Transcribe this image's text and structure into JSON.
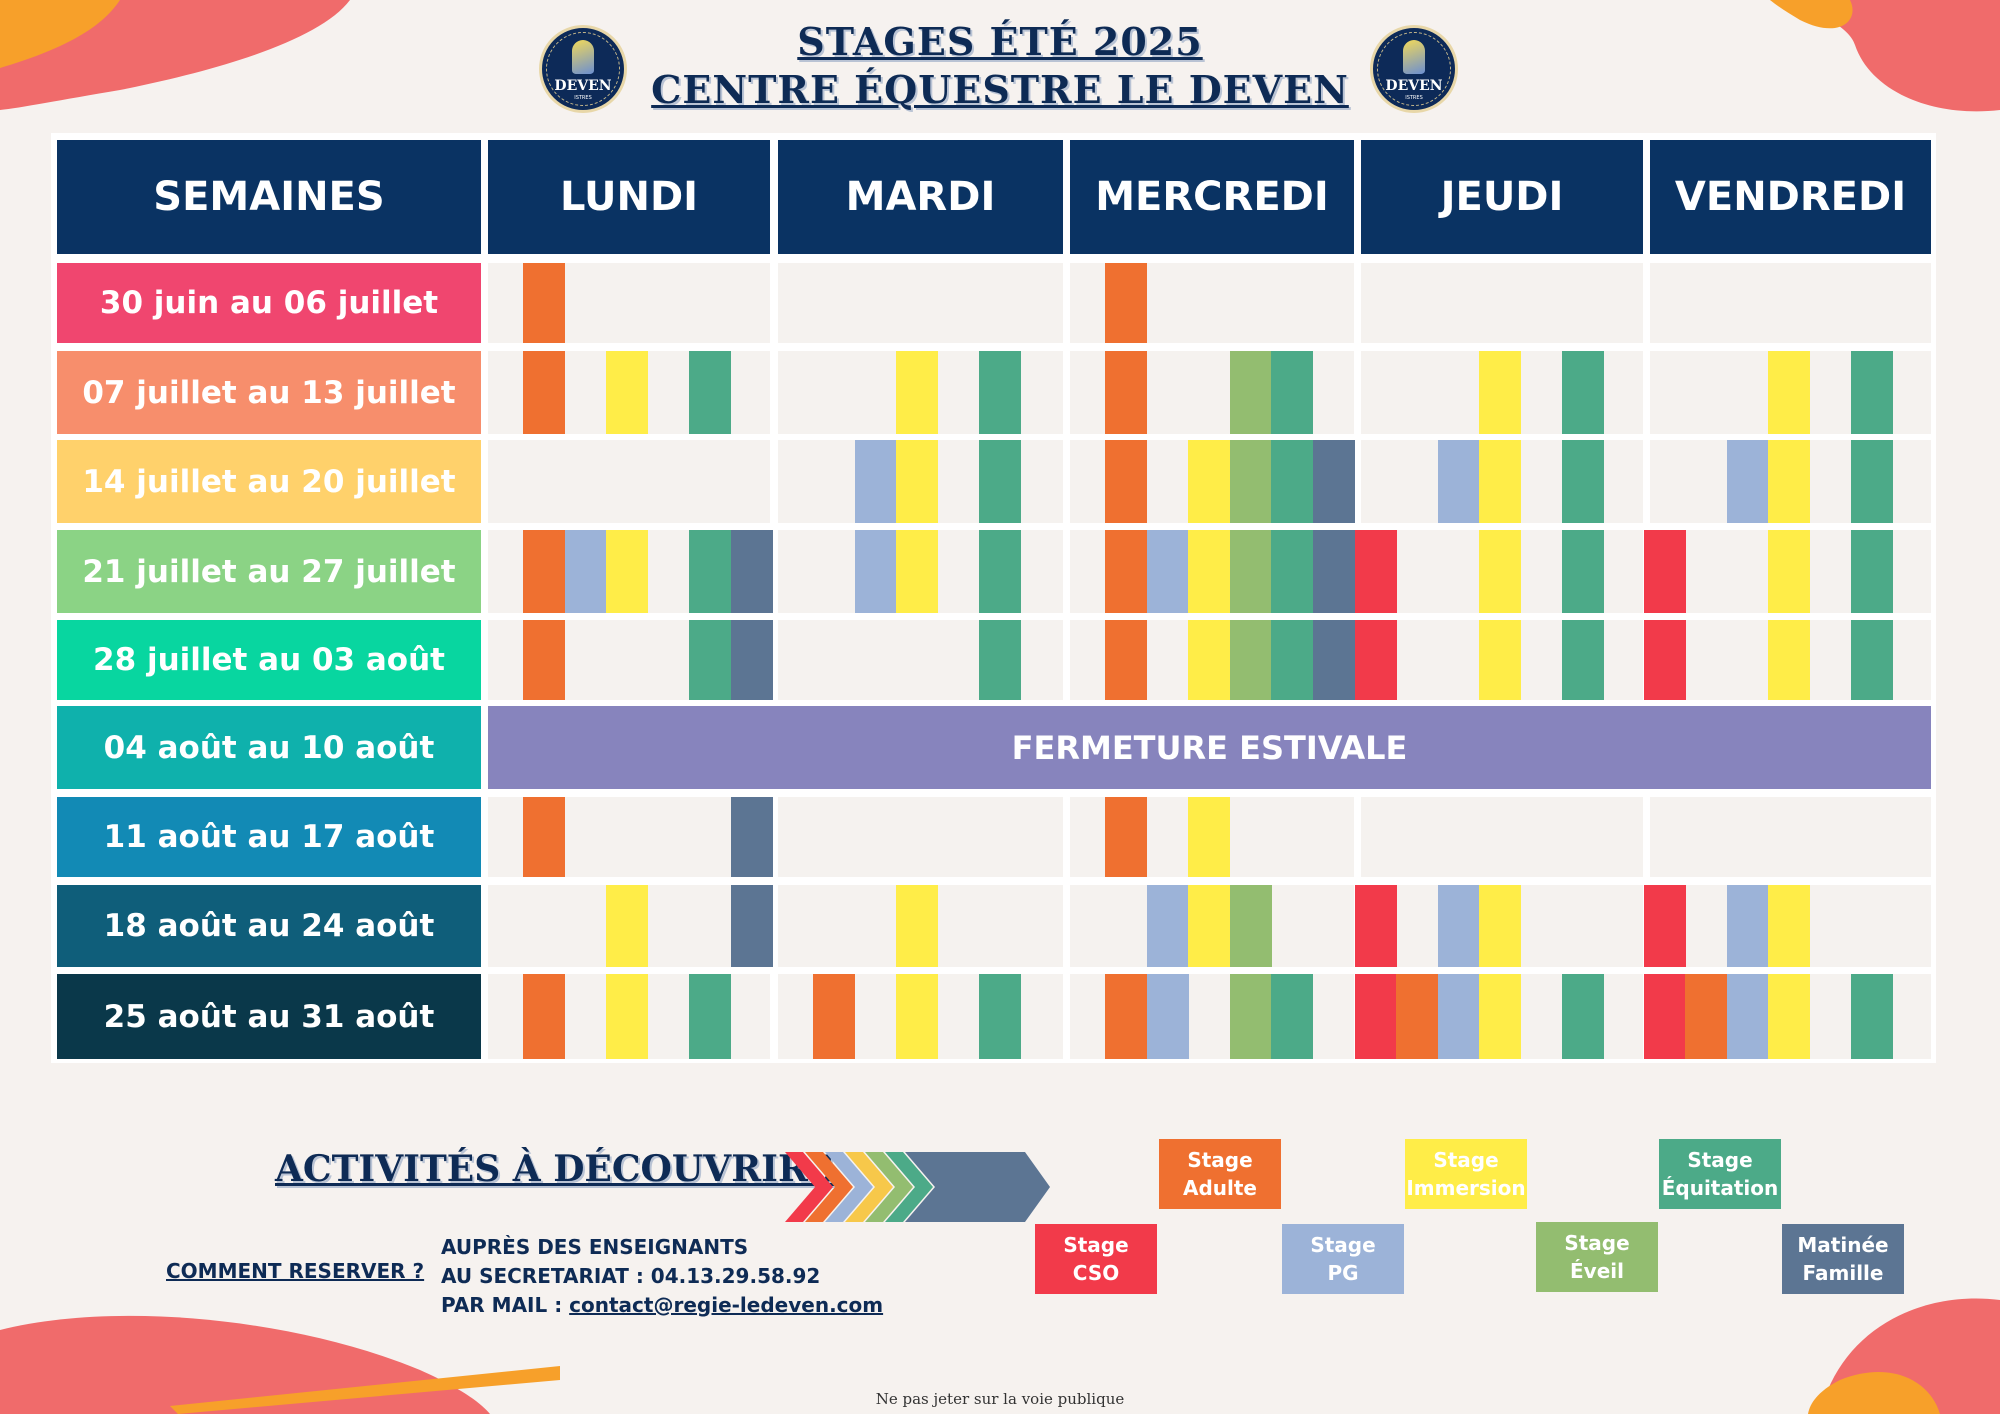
{
  "header": {
    "title_line1": "STAGES ÉTÉ 2025",
    "title_line2": "CENTRE ÉQUESTRE LE DEVEN"
  },
  "logo": {
    "text": "DEVEN",
    "sub": "ISTRES"
  },
  "colors": {
    "adulte": "#ef7030",
    "pg": "#9cb3d8",
    "immersion": "#ffed48",
    "eveil": "#93bd70",
    "equitation": "#4caa88",
    "famille": "#5c7593",
    "cso": "#f23a4a",
    "header": "#0a3363",
    "closure": "#8784bd"
  },
  "schedule": {
    "corner_label": "SEMAINES",
    "days": [
      "LUNDI",
      "MARDI",
      "MERCREDI",
      "JEUDI",
      "VENDREDI"
    ],
    "activity_order": [
      "cso",
      "adulte",
      "pg",
      "immersion",
      "eveil",
      "equitation",
      "famille"
    ],
    "weeks": [
      {
        "label": "30  juin au 06 juillet",
        "color": "#f0466f",
        "days": [
          [
            "adulte"
          ],
          [],
          [
            "adulte"
          ],
          [],
          []
        ]
      },
      {
        "label": "07 juillet au 13 juillet",
        "color": "#f78e6c",
        "days": [
          [
            "adulte",
            "immersion",
            "equitation"
          ],
          [
            "immersion",
            "equitation"
          ],
          [
            "adulte",
            "eveil",
            "equitation"
          ],
          [
            "immersion",
            "equitation"
          ],
          [
            "immersion",
            "equitation"
          ]
        ]
      },
      {
        "label": "14 juillet au 20 juillet",
        "color": "#ffd16b",
        "days": [
          [],
          [
            "pg",
            "immersion",
            "equitation"
          ],
          [
            "adulte",
            "immersion",
            "eveil",
            "equitation",
            "famille"
          ],
          [
            "pg",
            "immersion",
            "equitation"
          ],
          [
            "pg",
            "immersion",
            "equitation"
          ]
        ]
      },
      {
        "label": "21 juillet au 27 juillet",
        "color": "#8bd385",
        "days": [
          [
            "adulte",
            "pg",
            "immersion",
            "equitation",
            "famille"
          ],
          [
            "pg",
            "immersion",
            "equitation"
          ],
          [
            "adulte",
            "pg",
            "immersion",
            "eveil",
            "equitation",
            "famille"
          ],
          [
            "cso",
            "immersion",
            "equitation"
          ],
          [
            "cso",
            "immersion",
            "equitation"
          ]
        ]
      },
      {
        "label": "28 juillet au 03 août",
        "color": "#08d6a0",
        "days": [
          [
            "adulte",
            "equitation",
            "famille"
          ],
          [
            "equitation"
          ],
          [
            "adulte",
            "immersion",
            "eveil",
            "equitation",
            "famille"
          ],
          [
            "cso",
            "immersion",
            "equitation"
          ],
          [
            "cso",
            "immersion",
            "equitation"
          ]
        ]
      },
      {
        "label": "04 août au 10 août",
        "color": "#0fb1ac",
        "closed": true,
        "closed_label": "FERMETURE ESTIVALE"
      },
      {
        "label": "11 août  au 17 août",
        "color": "#128ab5",
        "days": [
          [
            "adulte",
            "famille"
          ],
          [],
          [
            "adulte",
            "immersion"
          ],
          [],
          []
        ]
      },
      {
        "label": "18 août au 24 août",
        "color": "#0f5e7a",
        "days": [
          [
            "immersion",
            "famille"
          ],
          [
            "immersion"
          ],
          [
            "pg",
            "immersion",
            "eveil"
          ],
          [
            "cso",
            "pg",
            "immersion"
          ],
          [
            "cso",
            "pg",
            "immersion"
          ]
        ]
      },
      {
        "label": "25 août au 31 août",
        "color": "#0a384a",
        "days": [
          [
            "adulte",
            "immersion",
            "equitation"
          ],
          [
            "adulte",
            "immersion",
            "equitation"
          ],
          [
            "adulte",
            "pg",
            "eveil",
            "equitation"
          ],
          [
            "cso",
            "adulte",
            "pg",
            "immersion",
            "equitation"
          ],
          [
            "cso",
            "adulte",
            "pg",
            "immersion",
            "equitation"
          ]
        ]
      }
    ]
  },
  "bottom": {
    "activities_title": "ACTIVITÉS À DÉCOUVRIR !",
    "comment_label": "COMMENT RESERVER ?",
    "resa_line1": "AUPRÈS DES ENSEIGNANTS",
    "resa_line2": "AU SECRETARIAT : 04.13.29.58.92",
    "resa_line3_prefix": "PAR MAIL : ",
    "resa_email": "contact@regie-ledeven.com"
  },
  "legend": {
    "adulte": "Stage\nAdulte",
    "immersion": "Stage\nImmersion",
    "equitation": "Stage\nÉquitation",
    "cso": "Stage\nCSO",
    "pg": "Stage\nPG",
    "eveil": "Stage\nÉveil",
    "famille": "Matinée\nFamille"
  },
  "footer": "Ne pas jeter sur la voie publique"
}
